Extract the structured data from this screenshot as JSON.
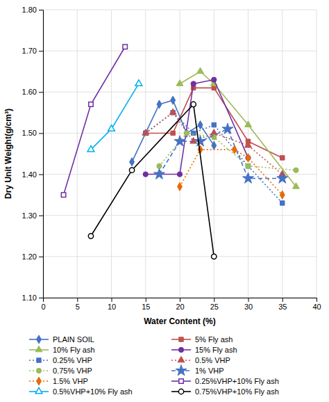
{
  "chart_data": {
    "type": "line",
    "xlabel": "Water Content (%)",
    "ylabel": "Dry Unit Weight(g/cm³)",
    "xlim": [
      0,
      40
    ],
    "ylim": [
      1.1,
      1.8
    ],
    "xticks": [
      0,
      5,
      10,
      15,
      20,
      25,
      30,
      35,
      40
    ],
    "yticks": [
      {
        "value": 1.1,
        "label": "1.10"
      },
      {
        "value": 1.2,
        "label": "1.20"
      },
      {
        "value": 1.3,
        "label": "1.30"
      },
      {
        "value": 1.4,
        "label": "1.40"
      },
      {
        "value": 1.5,
        "label": "1.50"
      },
      {
        "value": 1.6,
        "label": "1.60"
      },
      {
        "value": 1.7,
        "label": "1.70"
      },
      {
        "value": 1.8,
        "label": "1.80"
      }
    ],
    "grid": true,
    "legend": "bottom",
    "series": [
      {
        "name": "PLAIN SOIL",
        "color": "#4472C4",
        "marker": "diamond",
        "line_style": "solid",
        "x": [
          13,
          17,
          19,
          21,
          23,
          25
        ],
        "values": [
          1.43,
          1.57,
          1.58,
          1.5,
          1.52,
          1.47
        ]
      },
      {
        "name": "5% Fly ash",
        "color": "#C0504D",
        "marker": "square",
        "line_style": "solid",
        "x": [
          15,
          19,
          22,
          25,
          30,
          35
        ],
        "values": [
          1.5,
          1.5,
          1.61,
          1.61,
          1.48,
          1.44
        ]
      },
      {
        "name": "10% Fly ash",
        "color": "#9BBB59",
        "marker": "triangle",
        "line_style": "solid",
        "x": [
          20,
          23,
          25,
          30,
          37
        ],
        "values": [
          1.62,
          1.65,
          1.62,
          1.52,
          1.37
        ]
      },
      {
        "name": "15% Fly ash",
        "color": "#7030A0",
        "marker": "circle",
        "line_style": "solid",
        "x": [
          15,
          20,
          22,
          25,
          30
        ],
        "values": [
          1.4,
          1.4,
          1.62,
          1.63,
          1.44
        ]
      },
      {
        "name": "0.25% VHP",
        "color": "#4472C4",
        "marker": "square",
        "line_style": "dotted",
        "x": [
          15,
          19,
          22,
          25,
          30,
          35
        ],
        "values": [
          1.5,
          1.55,
          1.5,
          1.52,
          1.42,
          1.33
        ]
      },
      {
        "name": "0.5% VHP",
        "color": "#C0504D",
        "marker": "triangle",
        "line_style": "dotted",
        "x": [
          15,
          19,
          22,
          25,
          30,
          35
        ],
        "values": [
          1.5,
          1.55,
          1.48,
          1.5,
          1.47,
          1.4
        ]
      },
      {
        "name": "0.75% VHP",
        "color": "#9BBB59",
        "marker": "circle",
        "line_style": "dotted",
        "x": [
          17,
          21,
          25,
          30,
          37
        ],
        "values": [
          1.42,
          1.5,
          1.49,
          1.42,
          1.41
        ]
      },
      {
        "name": "1% VHP",
        "color": "#4472C4",
        "marker": "star",
        "line_style": "dashed",
        "x": [
          17,
          20,
          23,
          27,
          30,
          35
        ],
        "values": [
          1.4,
          1.48,
          1.48,
          1.51,
          1.39,
          1.39
        ]
      },
      {
        "name": "1.5% VHP",
        "color": "#E36C09",
        "marker": "diamond",
        "line_style": "dotted",
        "x": [
          20,
          23,
          28,
          30,
          35
        ],
        "values": [
          1.37,
          1.46,
          1.46,
          1.44,
          1.35
        ]
      },
      {
        "name": "0.25%VHP+10% Fly ash",
        "color": "#7030A0",
        "marker": "square-open",
        "line_style": "solid",
        "x": [
          3,
          7,
          12
        ],
        "values": [
          1.35,
          1.57,
          1.71
        ]
      },
      {
        "name": "0.5%VHP+10% Fly ash",
        "color": "#00B0F0",
        "marker": "triangle-open",
        "line_style": "solid",
        "x": [
          7,
          10,
          14
        ],
        "values": [
          1.46,
          1.51,
          1.62
        ]
      },
      {
        "name": "0.75%VHP+10% Fly ash",
        "color": "#000000",
        "marker": "circle-open",
        "line_style": "solid",
        "x": [
          7,
          13,
          22,
          25
        ],
        "values": [
          1.25,
          1.41,
          1.57,
          1.2
        ]
      }
    ]
  }
}
